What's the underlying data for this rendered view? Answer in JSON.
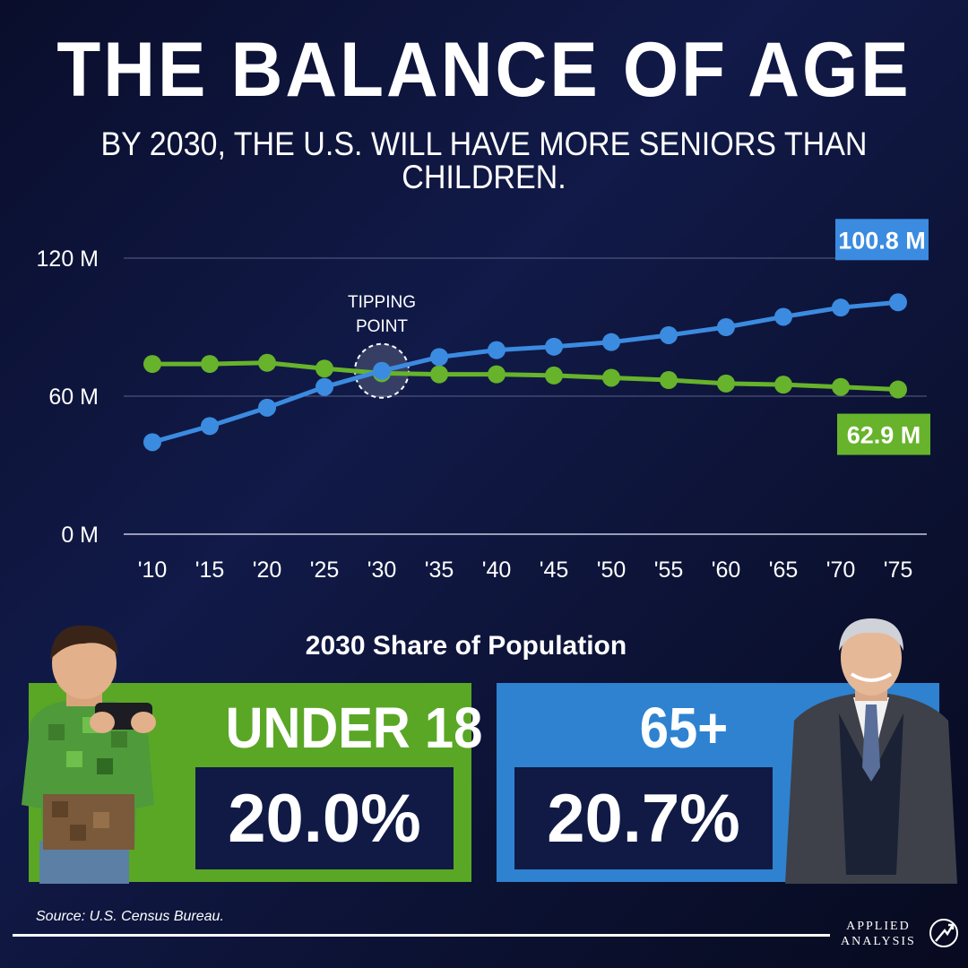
{
  "title": "THE BALANCE OF AGE",
  "subtitle": "BY 2030, THE U.S. WILL HAVE MORE SENIORS THAN CHILDREN.",
  "chart_data": {
    "type": "line",
    "x": [
      "'10",
      "'15",
      "'20",
      "'25",
      "'30",
      "'35",
      "'40",
      "'45",
      "'50",
      "'55",
      "'60",
      "'65",
      "'70",
      "'75"
    ],
    "y_ticks": [
      "0 M",
      "60 M",
      "120 M"
    ],
    "ylim": [
      0,
      120
    ],
    "grid": true,
    "series": [
      {
        "color": "#3b8be0",
        "values": [
          40,
          47,
          55,
          64,
          71,
          77,
          80,
          81.5,
          83.5,
          86.5,
          90,
          94.5,
          98.5,
          100.8
        ]
      },
      {
        "color": "#67b32b",
        "values": [
          74,
          74,
          74.5,
          72,
          70,
          69.5,
          69.5,
          69,
          68,
          67,
          65.5,
          65,
          64,
          62.9
        ]
      }
    ],
    "end_labels": {
      "senior": "100.8 M",
      "child": "62.9 M"
    },
    "annotation": {
      "line1": "TIPPING",
      "line2": "POINT",
      "x_index": 4,
      "y": 71
    }
  },
  "share": {
    "title": "2030 Share of Population",
    "under18": {
      "label": "UNDER 18",
      "value": "20.0%"
    },
    "seniors": {
      "label": "65+",
      "value": "20.7%"
    }
  },
  "footer": {
    "source": "Source: U.S. Census Bureau.",
    "logo_line1": "APPLIED",
    "logo_line2": "ANALYSIS"
  },
  "colors": {
    "green": "#5aa726",
    "blue": "#2f82d0",
    "navy_box": "#101a45"
  },
  "icons": {
    "logo": "arrow-up-circle-icon"
  }
}
